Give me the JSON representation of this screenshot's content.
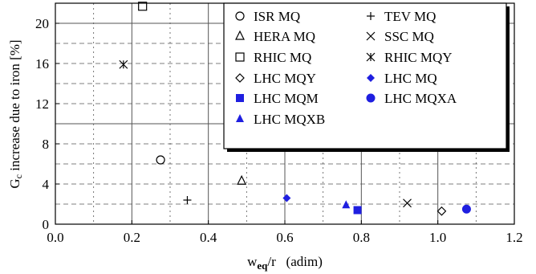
{
  "chart_data": {
    "type": "scatter",
    "title": "",
    "xlabel": "w_eq/r (adim)",
    "xlabel_main": "w",
    "xlabel_sub": "eq",
    "xlabel_tail": "/r   (adim)",
    "ylabel": "G₂ increase due to iron [%]",
    "ylabel_main": "G",
    "ylabel_sub": "c",
    "ylabel_tail": " increase due to iron [%]",
    "xlim": [
      0,
      1.2
    ],
    "ylim": [
      0,
      22
    ],
    "xticks": [
      "0.0",
      "0.2",
      "0.4",
      "0.6",
      "0.8",
      "1.0",
      "1.2"
    ],
    "yticks": [
      "0",
      "4",
      "8",
      "12",
      "16",
      "20"
    ],
    "grid": true,
    "legend_position": "top-right",
    "series": [
      {
        "name": "ISR MQ",
        "marker": "circle-open",
        "color": "#000000",
        "x": [
          0.275
        ],
        "y": [
          6.4
        ]
      },
      {
        "name": "TEV MQ",
        "marker": "plus",
        "color": "#000000",
        "x": [
          0.345
        ],
        "y": [
          2.4
        ]
      },
      {
        "name": "HERA MQ",
        "marker": "triangle-open",
        "color": "#000000",
        "x": [
          0.487
        ],
        "y": [
          4.3
        ]
      },
      {
        "name": "SSC MQ",
        "marker": "x",
        "color": "#000000",
        "x": [
          0.92
        ],
        "y": [
          2.1
        ]
      },
      {
        "name": "RHIC MQ",
        "marker": "square-open",
        "color": "#000000",
        "x": [
          0.228
        ],
        "y": [
          21.7
        ]
      },
      {
        "name": "RHIC MQY",
        "marker": "asterisk",
        "color": "#000000",
        "x": [
          0.178
        ],
        "y": [
          15.9
        ]
      },
      {
        "name": "LHC MQY",
        "marker": "diamond-open",
        "color": "#000000",
        "x": [
          1.01
        ],
        "y": [
          1.3
        ]
      },
      {
        "name": "LHC MQ",
        "marker": "diamond-filled",
        "color": "#1f1fe0",
        "x": [
          0.605
        ],
        "y": [
          2.6
        ]
      },
      {
        "name": "LHC MQM",
        "marker": "square-filled",
        "color": "#1f1fe0",
        "x": [
          0.79
        ],
        "y": [
          1.4
        ]
      },
      {
        "name": "LHC MQXA",
        "marker": "circle-filled",
        "color": "#1f1fe0",
        "x": [
          1.075
        ],
        "y": [
          1.5
        ]
      },
      {
        "name": "LHC MQXB",
        "marker": "triangle-filled",
        "color": "#1f1fe0",
        "x": [
          0.76
        ],
        "y": [
          1.9
        ]
      }
    ]
  }
}
